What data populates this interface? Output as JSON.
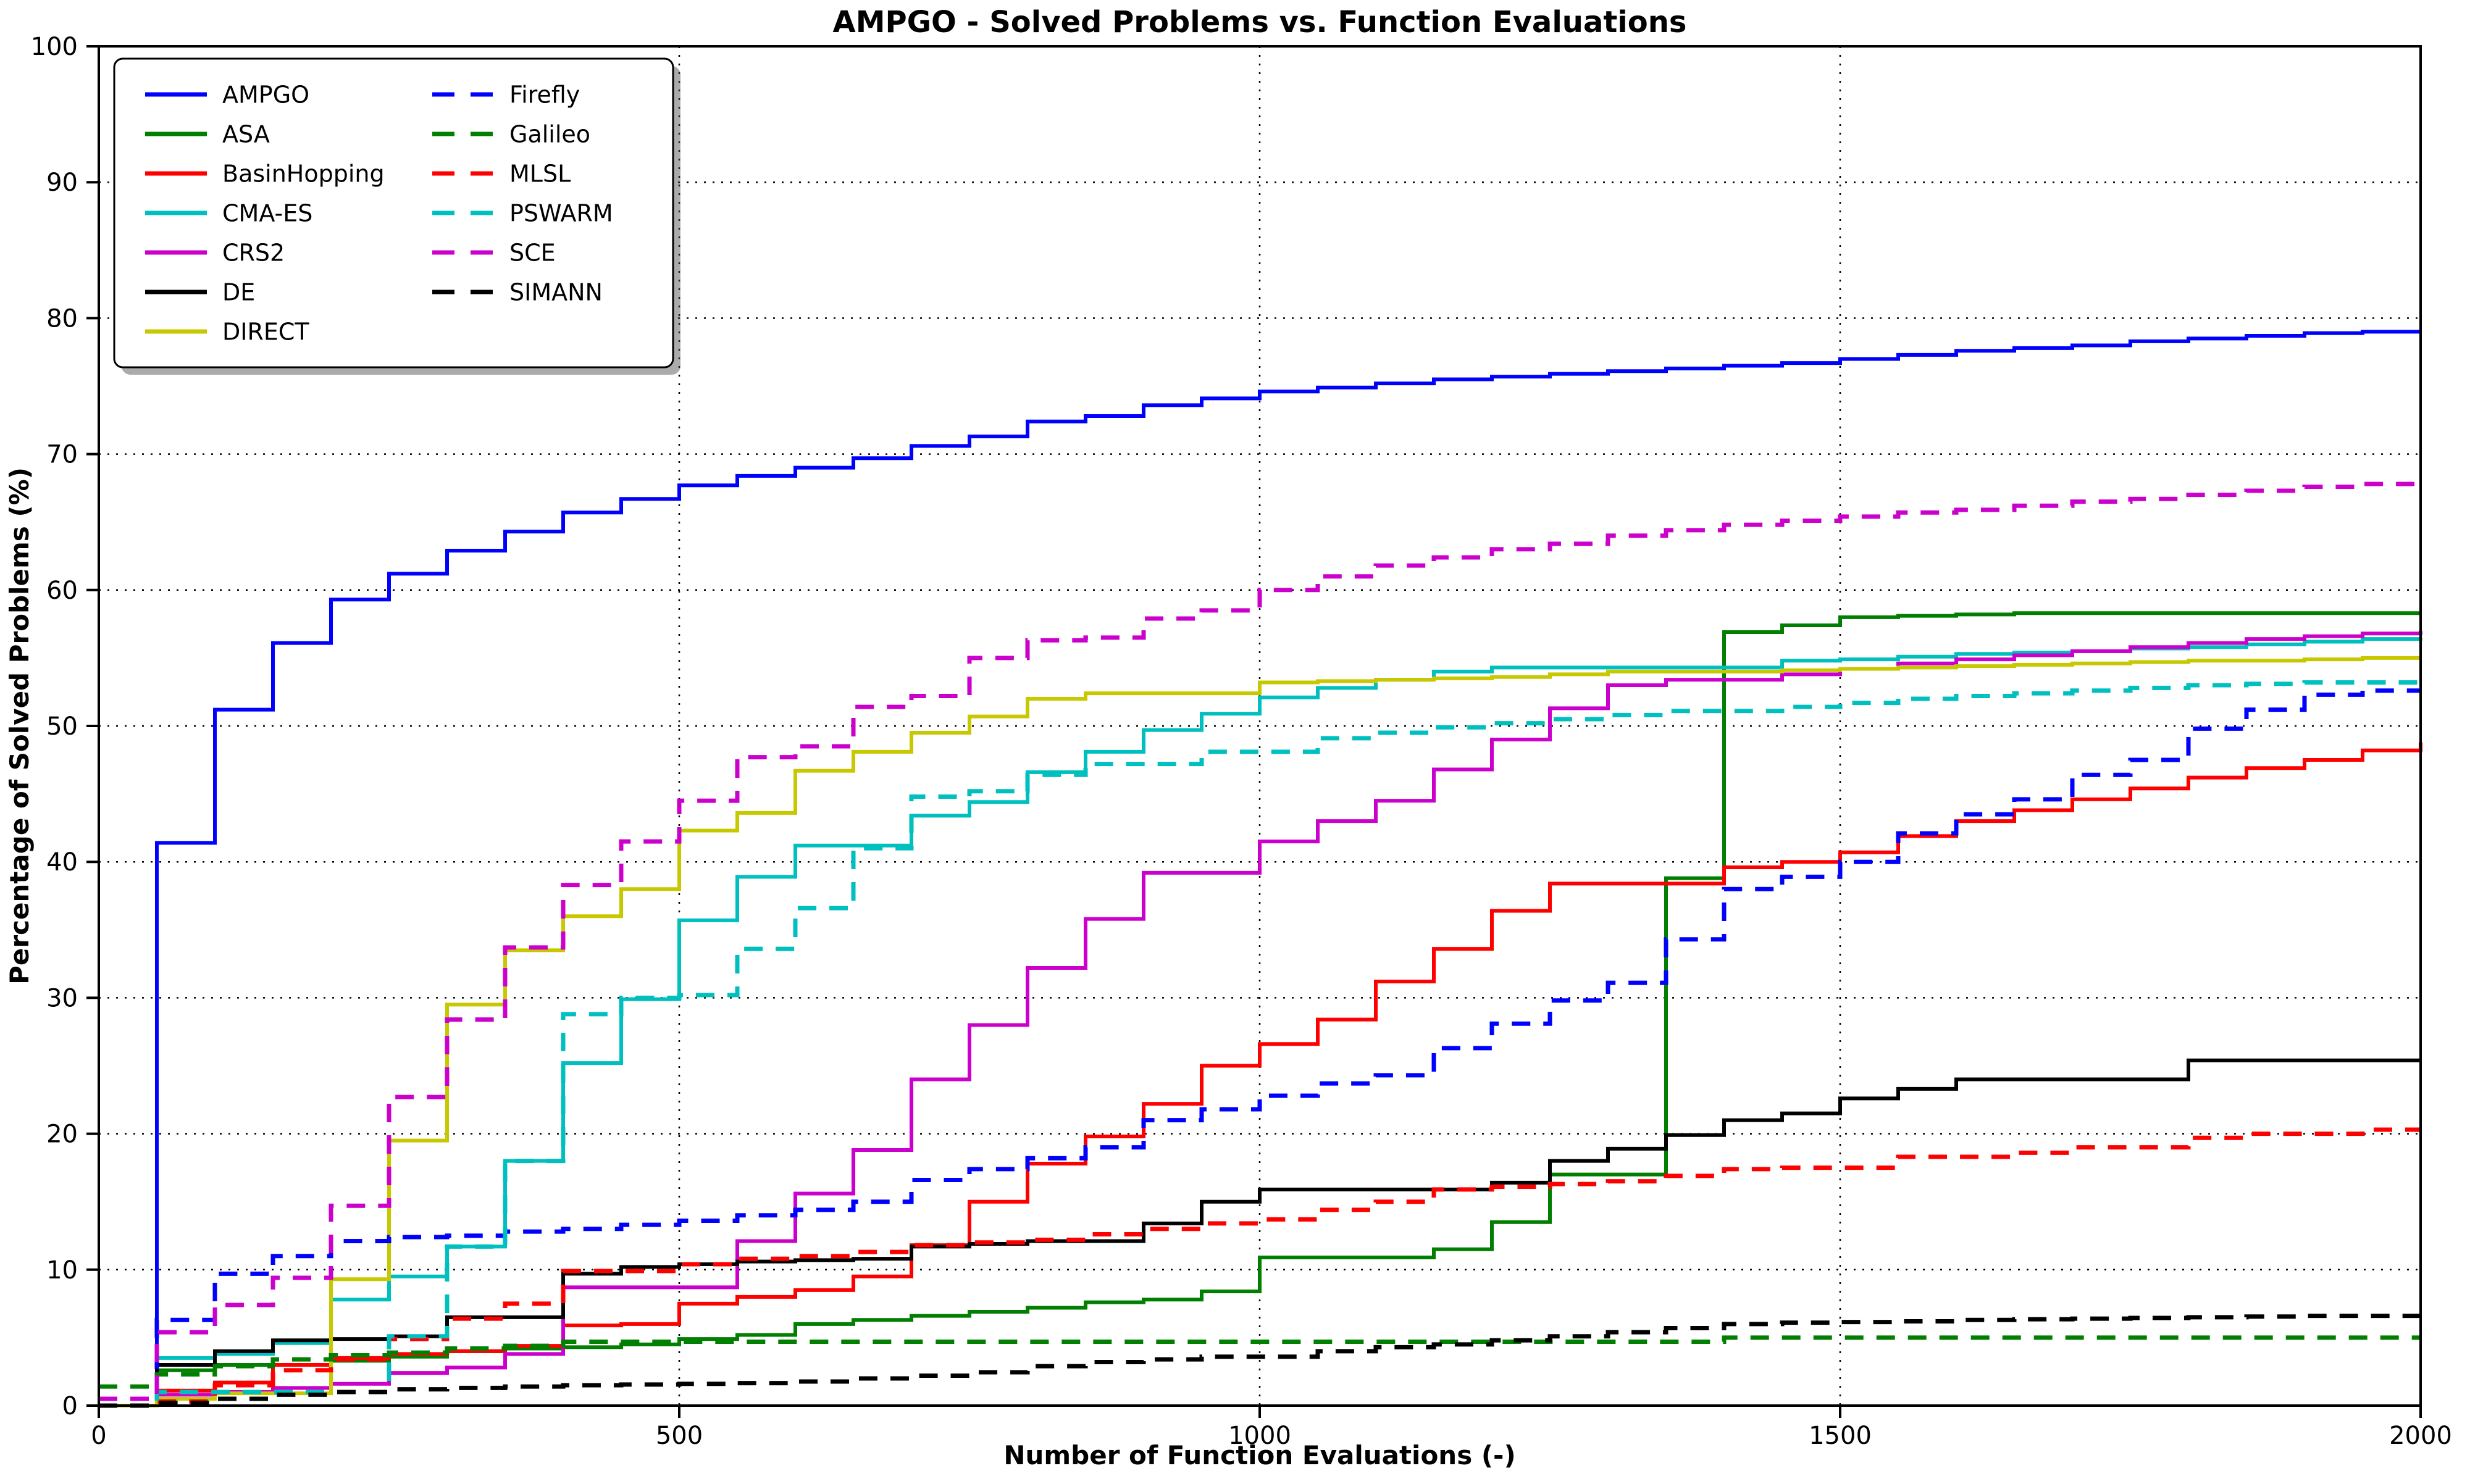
{
  "title": "AMPGO - Solved Problems vs. Function Evaluations",
  "x_axis": {
    "label": "Number of Function Evaluations (-)",
    "ticks": [
      0,
      500,
      1000,
      1500,
      2000
    ],
    "range": [
      0,
      2000
    ]
  },
  "y_axis": {
    "label": "Percentage of Solved Problems (%)",
    "ticks": [
      0,
      10,
      20,
      30,
      40,
      50,
      60,
      70,
      80,
      90,
      100
    ],
    "range": [
      0,
      100
    ]
  },
  "chart_data": {
    "type": "line",
    "step": true,
    "grid": "dotted",
    "legend_position": "upper left",
    "legend_columns": [
      7,
      6
    ],
    "x_start": 0,
    "x_step": 50,
    "xlim": [
      0,
      2000
    ],
    "ylim": [
      0,
      100
    ],
    "series": [
      {
        "name": "AMPGO",
        "color": "#0000ff",
        "dash": "solid",
        "values": [
          0,
          41.4,
          51.2,
          56.1,
          59.3,
          61.2,
          62.9,
          64.3,
          65.7,
          66.7,
          67.7,
          68.4,
          69.0,
          69.7,
          70.6,
          71.3,
          72.4,
          72.8,
          73.6,
          74.1,
          74.6,
          74.9,
          75.2,
          75.5,
          75.7,
          75.9,
          76.1,
          76.3,
          76.5,
          76.7,
          77.0,
          77.3,
          77.6,
          77.8,
          78.0,
          78.3,
          78.5,
          78.7,
          78.9,
          79.0,
          79.0
        ]
      },
      {
        "name": "ASA",
        "color": "#007f00",
        "dash": "solid",
        "values": [
          0,
          2.6,
          3.0,
          3.0,
          3.3,
          3.6,
          4.0,
          4.2,
          4.3,
          4.5,
          4.9,
          5.2,
          6.0,
          6.3,
          6.6,
          6.9,
          7.2,
          7.6,
          7.8,
          8.4,
          10.9,
          10.9,
          10.9,
          11.5,
          13.5,
          17.0,
          17.0,
          38.8,
          56.9,
          57.4,
          58.0,
          58.1,
          58.2,
          58.3,
          58.3,
          58.3,
          58.3,
          58.3,
          58.3,
          58.3,
          58.3
        ]
      },
      {
        "name": "BasinHopping",
        "color": "#ff0000",
        "dash": "solid",
        "values": [
          0,
          1.1,
          1.7,
          3.0,
          3.5,
          3.8,
          4.0,
          4.4,
          5.9,
          6.0,
          7.5,
          8.0,
          8.5,
          9.5,
          11.8,
          15.0,
          17.8,
          19.8,
          22.2,
          25.0,
          26.6,
          28.4,
          31.2,
          33.6,
          36.4,
          38.4,
          38.4,
          38.4,
          39.6,
          40.0,
          40.7,
          41.9,
          43.0,
          43.8,
          44.6,
          45.4,
          46.2,
          46.9,
          47.5,
          48.2,
          48.8
        ]
      },
      {
        "name": "CMA-ES",
        "color": "#00bfbf",
        "dash": "solid",
        "values": [
          0,
          3.5,
          3.8,
          4.6,
          7.8,
          9.5,
          11.7,
          18.0,
          25.2,
          29.9,
          35.7,
          38.9,
          41.2,
          41.2,
          43.4,
          44.4,
          46.6,
          48.1,
          49.7,
          50.9,
          52.1,
          52.8,
          53.4,
          54.0,
          54.3,
          54.3,
          54.3,
          54.3,
          54.3,
          54.8,
          54.9,
          55.1,
          55.3,
          55.4,
          55.5,
          55.7,
          55.8,
          56.0,
          56.2,
          56.4,
          56.5
        ]
      },
      {
        "name": "CRS2",
        "color": "#cc00cc",
        "dash": "solid",
        "values": [
          0,
          0.8,
          1.0,
          1.3,
          1.6,
          2.4,
          2.8,
          3.8,
          8.7,
          8.7,
          8.7,
          12.1,
          15.6,
          18.8,
          24.0,
          28.0,
          32.2,
          35.8,
          39.2,
          39.2,
          41.5,
          43.0,
          44.5,
          46.8,
          49.0,
          51.3,
          53.0,
          53.4,
          53.4,
          53.8,
          54.2,
          54.6,
          54.9,
          55.2,
          55.5,
          55.8,
          56.1,
          56.4,
          56.6,
          56.8,
          57.0
        ]
      },
      {
        "name": "DE",
        "color": "#000000",
        "dash": "solid",
        "values": [
          0,
          3.0,
          4.0,
          4.8,
          4.9,
          5.1,
          6.5,
          6.5,
          9.7,
          10.2,
          10.4,
          10.6,
          10.7,
          10.8,
          11.7,
          11.9,
          12.1,
          12.1,
          13.4,
          15.0,
          15.9,
          15.9,
          15.9,
          15.9,
          16.4,
          18.0,
          18.9,
          19.9,
          21.0,
          21.5,
          22.6,
          23.3,
          24.0,
          24.0,
          24.0,
          24.0,
          25.4,
          25.4,
          25.4,
          25.4,
          25.4
        ]
      },
      {
        "name": "DIRECT",
        "color": "#c8c800",
        "dash": "solid",
        "values": [
          0,
          0.5,
          0.9,
          0.9,
          9.3,
          19.5,
          29.5,
          33.5,
          36.0,
          38.0,
          42.3,
          43.6,
          46.7,
          48.1,
          49.5,
          50.7,
          52.0,
          52.4,
          52.4,
          52.4,
          53.2,
          53.3,
          53.4,
          53.5,
          53.6,
          53.8,
          54.0,
          54.0,
          54.0,
          54.1,
          54.2,
          54.3,
          54.4,
          54.5,
          54.6,
          54.7,
          54.8,
          54.8,
          54.9,
          55.0,
          55.0
        ]
      },
      {
        "name": "Firefly",
        "color": "#0000ff",
        "dash": "dashed",
        "values": [
          0,
          6.3,
          9.7,
          11.0,
          12.1,
          12.4,
          12.5,
          12.8,
          13.0,
          13.3,
          13.6,
          14.0,
          14.4,
          15.0,
          16.6,
          17.4,
          18.2,
          19.0,
          21.0,
          21.8,
          22.8,
          23.7,
          24.3,
          26.3,
          28.1,
          29.8,
          31.1,
          34.3,
          38.0,
          38.9,
          40.0,
          42.1,
          43.5,
          44.6,
          46.4,
          47.5,
          49.8,
          51.2,
          52.3,
          52.6,
          52.6
        ]
      },
      {
        "name": "Galileo",
        "color": "#007f00",
        "dash": "dashed",
        "values": [
          1.4,
          2.3,
          2.9,
          3.4,
          3.7,
          3.9,
          4.2,
          4.4,
          4.7,
          4.7,
          4.7,
          4.7,
          4.7,
          4.7,
          4.7,
          4.7,
          4.7,
          4.7,
          4.7,
          4.7,
          4.7,
          4.7,
          4.7,
          4.7,
          4.7,
          4.7,
          4.7,
          4.7,
          5.0,
          5.0,
          5.0,
          5.0,
          5.0,
          5.0,
          5.0,
          5.0,
          5.0,
          5.0,
          5.0,
          5.0,
          5.0
        ]
      },
      {
        "name": "MLSL",
        "color": "#ff0000",
        "dash": "dashed",
        "values": [
          0,
          0.3,
          1.5,
          2.6,
          3.4,
          4.9,
          6.4,
          7.5,
          9.9,
          9.9,
          10.4,
          10.8,
          11.0,
          11.3,
          11.8,
          12.0,
          12.2,
          12.6,
          13.0,
          13.4,
          13.7,
          14.4,
          15.0,
          15.9,
          16.1,
          16.3,
          16.5,
          16.9,
          17.4,
          17.5,
          17.5,
          18.3,
          18.3,
          18.6,
          19.0,
          19.0,
          19.7,
          20.0,
          20.0,
          20.3,
          20.3
        ]
      },
      {
        "name": "PSWARM",
        "color": "#00bfbf",
        "dash": "dashed",
        "values": [
          0,
          1.0,
          1.0,
          1.0,
          1.0,
          5.1,
          11.7,
          18.0,
          28.8,
          30.0,
          30.2,
          33.6,
          36.6,
          41.0,
          44.8,
          45.2,
          46.4,
          47.2,
          47.2,
          48.1,
          48.1,
          49.1,
          49.5,
          49.9,
          50.2,
          50.5,
          50.8,
          51.1,
          51.1,
          51.4,
          51.7,
          52.0,
          52.2,
          52.4,
          52.6,
          52.8,
          53.0,
          53.1,
          53.2,
          53.2,
          53.2
        ]
      },
      {
        "name": "SCE",
        "color": "#cc00cc",
        "dash": "dashed",
        "values": [
          0.5,
          5.4,
          7.4,
          9.4,
          14.7,
          22.7,
          28.4,
          33.7,
          38.3,
          41.5,
          44.5,
          47.7,
          48.5,
          51.4,
          52.2,
          55.0,
          56.3,
          56.5,
          57.9,
          58.5,
          60.0,
          61.0,
          61.8,
          62.4,
          63.0,
          63.4,
          64.0,
          64.4,
          64.8,
          65.1,
          65.4,
          65.7,
          65.9,
          66.2,
          66.5,
          66.7,
          67.0,
          67.3,
          67.6,
          67.8,
          67.8
        ]
      },
      {
        "name": "SIMANN",
        "color": "#000000",
        "dash": "dashed",
        "values": [
          0,
          0.2,
          0.5,
          0.8,
          1.0,
          1.2,
          1.3,
          1.4,
          1.5,
          1.55,
          1.6,
          1.65,
          1.77,
          2.0,
          2.2,
          2.45,
          2.9,
          3.2,
          3.4,
          3.6,
          3.6,
          4.0,
          4.3,
          4.5,
          4.8,
          5.1,
          5.4,
          5.7,
          6.0,
          6.1,
          6.15,
          6.2,
          6.3,
          6.35,
          6.4,
          6.45,
          6.5,
          6.55,
          6.6,
          6.6,
          6.6
        ]
      }
    ]
  }
}
